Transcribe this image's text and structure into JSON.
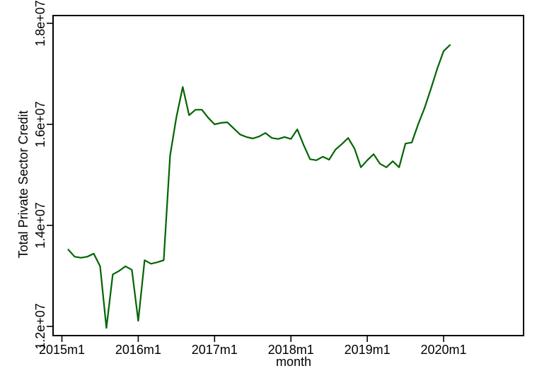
{
  "figure": {
    "background_color": "#ffffff",
    "axis_color": "#000000",
    "text_color": "#000000"
  },
  "chart_data": {
    "type": "line",
    "title": "",
    "xlabel": "month",
    "ylabel": "Total Private Sector Credit",
    "legend": "none",
    "grid": "off",
    "frame": "full-box",
    "line_color": "#006400",
    "x_tick_labels": [
      "2015m1",
      "2016m1",
      "2017m1",
      "2018m1",
      "2019m1",
      "2020m1"
    ],
    "y_tick_labels": [
      "1.2e+07",
      "1.4e+07",
      "1.6e+07",
      "1.8e+07"
    ],
    "y_tick_values": [
      12000000,
      14000000,
      16000000,
      18000000
    ],
    "ylim": [
      11800000,
      18170000
    ],
    "x_axis_note": "monthly data; series starts one month after first tick",
    "x_months_since_2015m1_start": 1,
    "categories": [
      "2015m2",
      "2015m3",
      "2015m4",
      "2015m5",
      "2015m6",
      "2015m7",
      "2015m8",
      "2015m9",
      "2015m10",
      "2015m11",
      "2015m12",
      "2016m1",
      "2016m2",
      "2016m3",
      "2016m4",
      "2016m5",
      "2016m6",
      "2016m7",
      "2016m8",
      "2016m9",
      "2016m10",
      "2016m11",
      "2016m12",
      "2017m1",
      "2017m2",
      "2017m3",
      "2017m4",
      "2017m5",
      "2017m6",
      "2017m7",
      "2017m8",
      "2017m9",
      "2017m10",
      "2017m11",
      "2017m12",
      "2018m1",
      "2018m2",
      "2018m3",
      "2018m4",
      "2018m5",
      "2018m6",
      "2018m7",
      "2018m8",
      "2018m9",
      "2018m10",
      "2018m11",
      "2018m12",
      "2019m1",
      "2019m2",
      "2019m3",
      "2019m4",
      "2019m5",
      "2019m6",
      "2019m7",
      "2019m8",
      "2019m9",
      "2019m10",
      "2019m11",
      "2019m12",
      "2020m1",
      "2020m2"
    ],
    "series": [
      {
        "name": "Total Private Sector Credit",
        "color": "#006400",
        "values": [
          13520000,
          13380000,
          13360000,
          13380000,
          13440000,
          13190000,
          11970000,
          13030000,
          13100000,
          13190000,
          13120000,
          12110000,
          13310000,
          13240000,
          13270000,
          13310000,
          15380000,
          16150000,
          16740000,
          16180000,
          16290000,
          16290000,
          16130000,
          16000000,
          16030000,
          16040000,
          15920000,
          15800000,
          15750000,
          15720000,
          15760000,
          15830000,
          15730000,
          15710000,
          15750000,
          15710000,
          15900000,
          15590000,
          15310000,
          15290000,
          15360000,
          15300000,
          15500000,
          15610000,
          15730000,
          15520000,
          15150000,
          15290000,
          15410000,
          15220000,
          15150000,
          15270000,
          15150000,
          15620000,
          15640000,
          16000000,
          16320000,
          16700000,
          17100000,
          17450000,
          17570000
        ]
      }
    ]
  }
}
